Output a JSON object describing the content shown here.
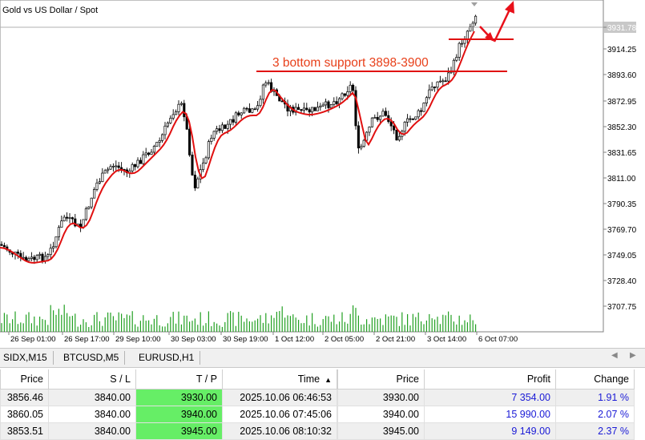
{
  "chart": {
    "title": "Gold vs US Dollar / Spot",
    "annotation": "3 bottom support 3898-3900",
    "current_price": "3931.78",
    "price_ticks": [
      "3931.78",
      "3914.25",
      "3893.60",
      "3872.95",
      "3852.30",
      "3831.65",
      "3811.00",
      "3790.35",
      "3769.70",
      "3749.05",
      "3728.40",
      "3707.75"
    ],
    "time_ticks": [
      "26 Sep 01:00",
      "26 Sep 17:00",
      "29 Sep 10:00",
      "30 Sep 03:00",
      "30 Sep 19:00",
      "1 Oct 12:00",
      "2 Oct 05:00",
      "2 Oct 21:00",
      "3 Oct 14:00",
      "6 Oct 07:00"
    ],
    "colors": {
      "candles": "#000000",
      "ma": "#e01010",
      "support": "#e01010",
      "annotation": "#e8401a",
      "arrow": "#e8101a",
      "volume": "#22a022"
    }
  },
  "tabs": [
    "SIDX,M15",
    "BTCUSD,M5",
    "EURUSD,H1"
  ],
  "table": {
    "headers": [
      "Price",
      "S / L",
      "T / P",
      "Time",
      "",
      "Price",
      "Profit",
      "Change"
    ],
    "sort_indicator": "▲",
    "rows": [
      [
        "3856.46",
        "3840.00",
        "3930.00",
        "2025.10.06 06:46:53",
        "3930.00",
        "7 354.00",
        "1.91 %"
      ],
      [
        "3860.05",
        "3840.00",
        "3940.00",
        "2025.10.06 07:45:06",
        "3940.00",
        "15 990.00",
        "2.07 %"
      ],
      [
        "3853.51",
        "3840.00",
        "3945.00",
        "2025.10.06 08:10:32",
        "3945.00",
        "9 149.00",
        "2.37 %"
      ]
    ]
  }
}
